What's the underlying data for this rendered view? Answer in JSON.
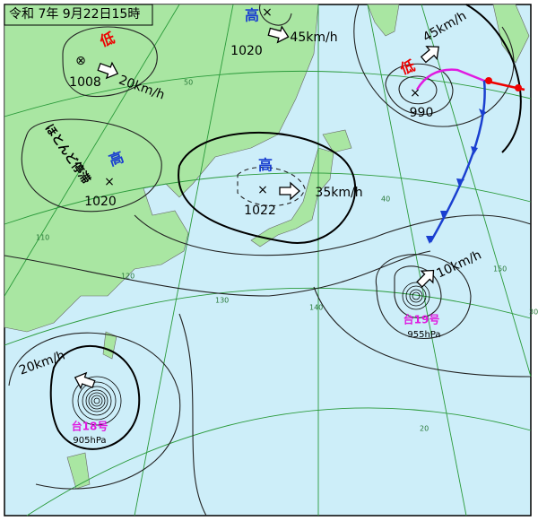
{
  "header": {
    "title": "令和 7年 9月22日15時"
  },
  "systems": [
    {
      "kind": "低",
      "pressure": "1008",
      "motion": "20km/h"
    },
    {
      "kind": "高",
      "pressure": "1020",
      "motion": "ほとんど停滞"
    },
    {
      "kind": "高",
      "pressure": "1020",
      "motion": "45km/h"
    },
    {
      "kind": "高",
      "pressure": "1022",
      "motion": "35km/h"
    },
    {
      "kind": "低",
      "pressure": "990",
      "motion": "45km/h"
    },
    {
      "kind": "台19号",
      "pressure": "955hPa",
      "motion": "10km/h"
    },
    {
      "kind": "台18号",
      "pressure": "905hPa",
      "motion": "20km/h"
    }
  ],
  "grid_labels": {
    "latitudes": [
      "50",
      "40",
      "30",
      "20"
    ],
    "longitudes": [
      "110",
      "120",
      "130",
      "140",
      "150"
    ]
  }
}
